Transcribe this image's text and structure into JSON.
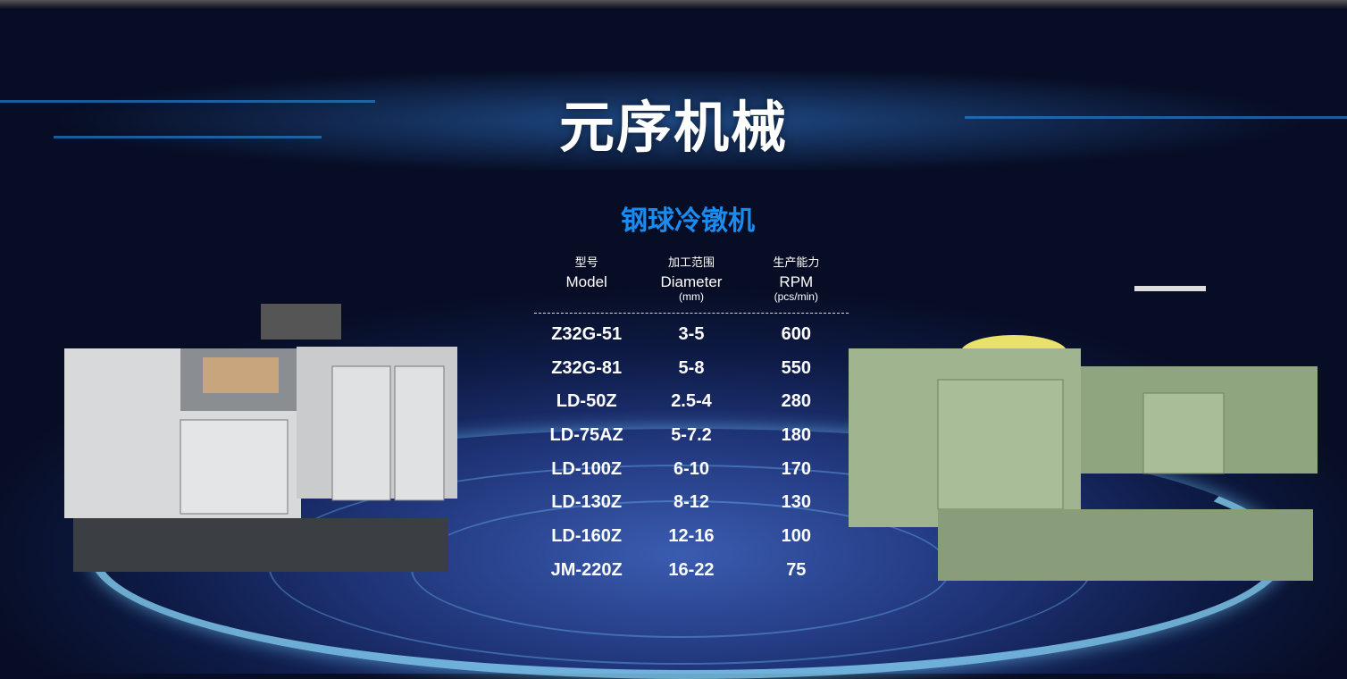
{
  "header": {
    "title": "元序机械"
  },
  "product": {
    "title": "钢球冷镦机"
  },
  "table": {
    "columns": [
      {
        "zh": "型号",
        "en": "Model",
        "unit": ""
      },
      {
        "zh": "加工范围",
        "en": "Diameter",
        "unit": "(mm)"
      },
      {
        "zh": "生产能力",
        "en": "RPM",
        "unit": "(pcs/min)"
      }
    ],
    "rows": [
      [
        "Z32G-51",
        "3-5",
        "600"
      ],
      [
        "Z32G-81",
        "5-8",
        "550"
      ],
      [
        "LD-50Z",
        "2.5-4",
        "280"
      ],
      [
        "LD-75AZ",
        "5-7.2",
        "180"
      ],
      [
        "LD-100Z",
        "6-10",
        "170"
      ],
      [
        "LD-130Z",
        "8-12",
        "130"
      ],
      [
        "LD-160Z",
        "12-16",
        "100"
      ],
      [
        "JM-220Z",
        "16-22",
        "75"
      ]
    ]
  },
  "colors": {
    "accent": "#1a8cf0",
    "background": "#0d1a44"
  }
}
